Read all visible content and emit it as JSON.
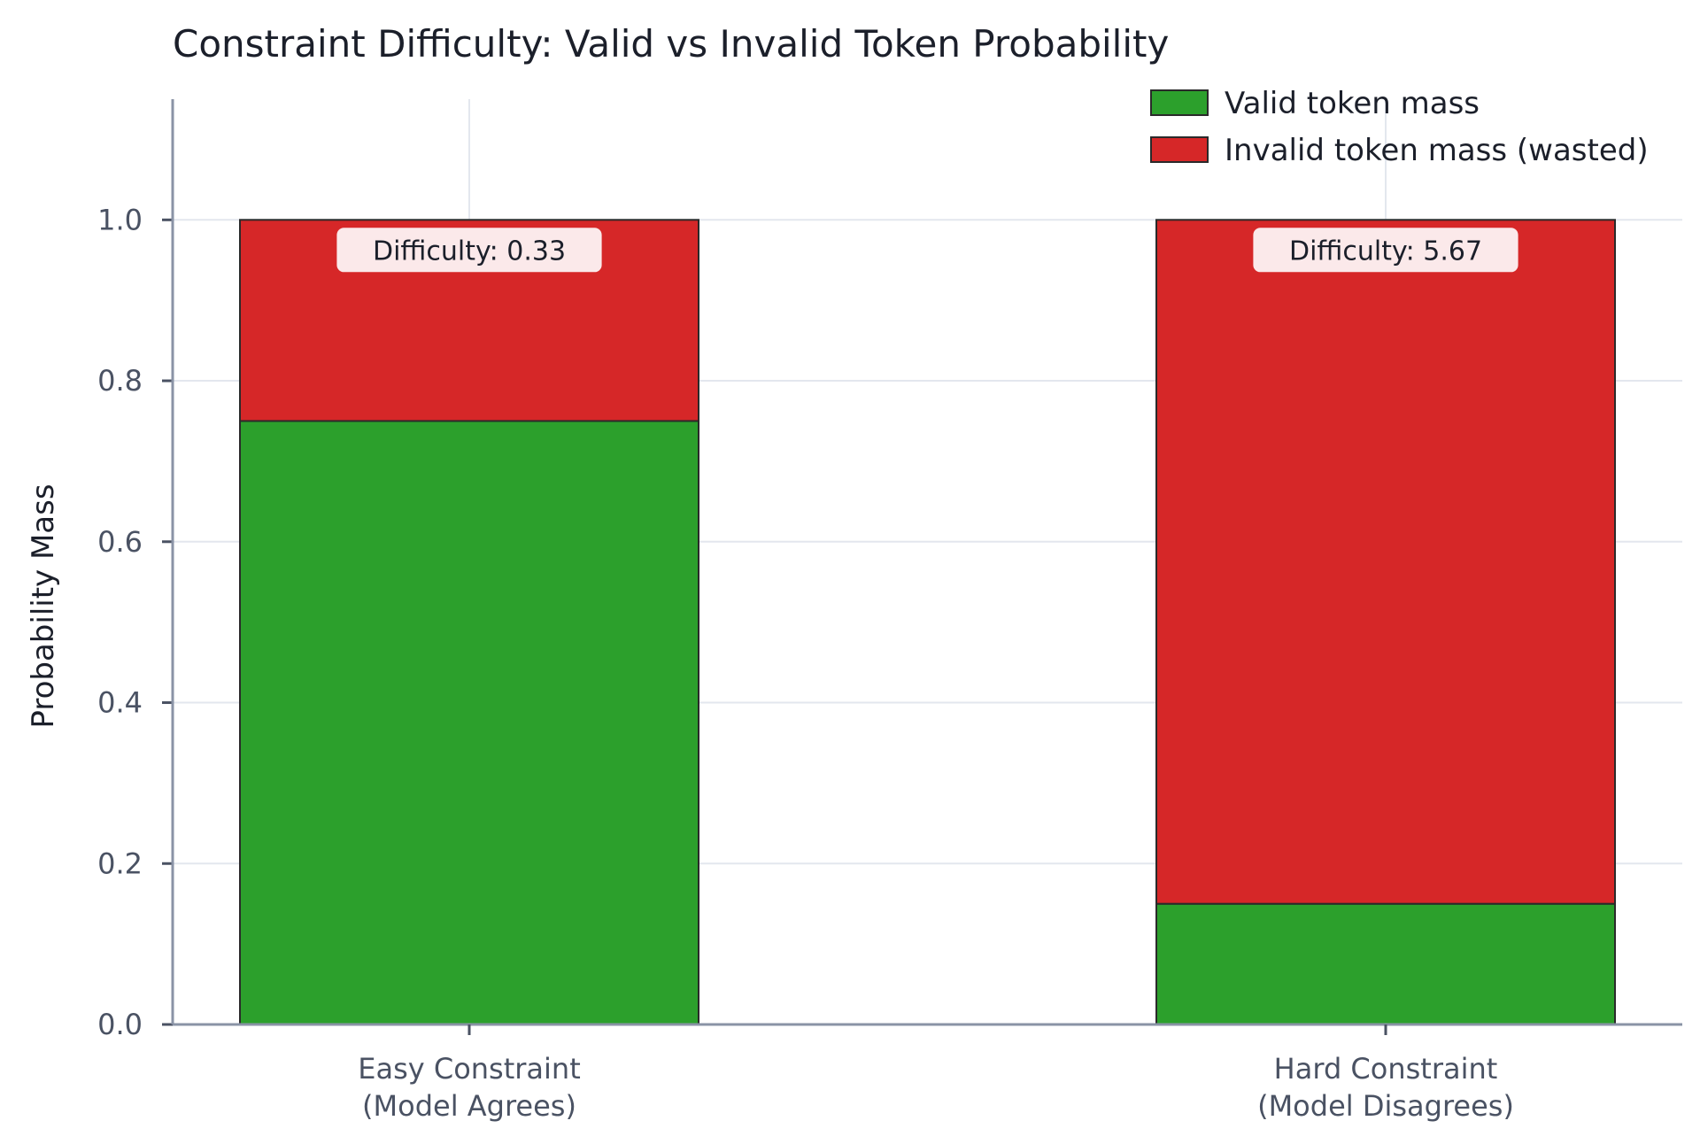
{
  "chart_data": {
    "type": "bar",
    "stacked": true,
    "title": "Constraint Difficulty: Valid vs Invalid Token Probability",
    "ylabel": "Probability Mass",
    "xlabel": "",
    "ylim": [
      0,
      1.15
    ],
    "yticks": [
      "0.0",
      "0.2",
      "0.4",
      "0.6",
      "0.8",
      "1.0"
    ],
    "grid": true,
    "legend_position": "top-right",
    "categories": [
      [
        "Easy Constraint",
        "(Model Agrees)"
      ],
      [
        "Hard Constraint",
        "(Model Disagrees)"
      ]
    ],
    "series": [
      {
        "name": "Valid token mass",
        "values": [
          0.75,
          0.15
        ],
        "color": "#2ca02c"
      },
      {
        "name": "Invalid token mass (wasted)",
        "values": [
          0.25,
          0.85
        ],
        "color": "#d62728"
      }
    ],
    "annotations": [
      "Difficulty: 0.33",
      "Difficulty: 5.67"
    ]
  }
}
